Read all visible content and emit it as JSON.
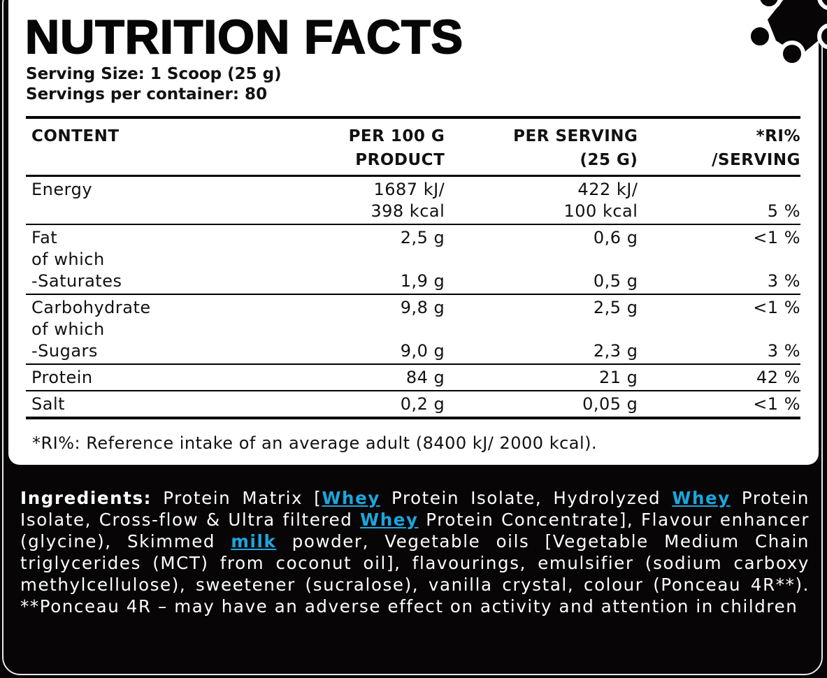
{
  "title": "NUTRITION FACTS",
  "serving_size": "Serving Size: 1 Scoop (25 g)",
  "servings_per_container": "Servings per container: 80",
  "colors": {
    "allergen_highlight": "#1ba6dd",
    "background": "#070506"
  },
  "logo_icon": "molecule-gear-icon",
  "table": {
    "headers": [
      [
        "CONTENT",
        ""
      ],
      [
        "PER 100 G",
        "PRODUCT"
      ],
      [
        "PER SERVING",
        "(25 G)"
      ],
      [
        "*RI%",
        "/SERVING"
      ]
    ],
    "rows": [
      {
        "name": [
          "Energy",
          ""
        ],
        "per100": [
          "1687 kJ/",
          "398 kcal"
        ],
        "serving": [
          "422 kJ/",
          "100 kcal"
        ],
        "ri": [
          "",
          "5 %"
        ]
      },
      {
        "name": [
          "Fat",
          "of which",
          "-Saturates"
        ],
        "per100": [
          "2,5 g",
          "",
          "1,9 g"
        ],
        "serving": [
          "0,6 g",
          "",
          "0,5 g"
        ],
        "ri": [
          "<1 %",
          "",
          "3 %"
        ]
      },
      {
        "name": [
          "Carbohydrate",
          "of which",
          "-Sugars"
        ],
        "per100": [
          "9,8 g",
          "",
          "9,0 g"
        ],
        "serving": [
          "2,5 g",
          "",
          "2,3 g"
        ],
        "ri": [
          "<1 %",
          "",
          "3 %"
        ]
      },
      {
        "name": [
          "Protein"
        ],
        "per100": [
          "84 g"
        ],
        "serving": [
          "21 g"
        ],
        "ri": [
          "42 %"
        ]
      },
      {
        "name": [
          "Salt"
        ],
        "per100": [
          "0,2 g"
        ],
        "serving": [
          "0,05 g"
        ],
        "ri": [
          "<1 %"
        ]
      }
    ]
  },
  "footnote": "*RI%: Reference intake of an average adult (8400 kJ/ 2000 kcal).",
  "ingredients": {
    "label": "Ingredients:",
    "t1": " Protein Matrix [",
    "a1": "Whey",
    "t2": " Protein Isolate, Hydrolyzed ",
    "a2": "Whey",
    "t3": " Protein Isolate, Cross-flow & Ultra filtered ",
    "a3": "Whey",
    "t4": " Protein Concentrate], Flavour enhancer (glycine), Skimmed ",
    "a4": "milk",
    "t5": " powder, Vegetable oils [Vegetable Medium Chain triglycerides (MCT) from coconut oil], flavourings, emulsifier (sodium carboxy methylcellulose), sweetener (sucralose), vanilla crystal, colour (Ponceau 4R**).",
    "warning": "**Ponceau 4R – may have an adverse effect on activity and attention in children"
  }
}
